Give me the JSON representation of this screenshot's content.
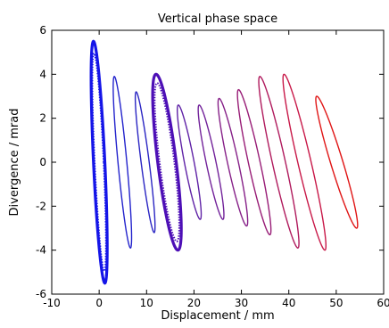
{
  "chart_data": {
    "type": "scatter",
    "title": "Vertical phase space",
    "xlabel": "Displacement / mm",
    "ylabel": "Divergence / mrad",
    "xlim": [
      -10,
      60
    ],
    "ylim": [
      -6,
      6
    ],
    "xticks": [
      -10,
      0,
      10,
      20,
      30,
      40,
      50,
      60
    ],
    "yticks": [
      -6,
      -4,
      -2,
      0,
      2,
      4,
      6
    ],
    "xtick_labels": [
      "-10",
      "0",
      "10",
      "20",
      "30",
      "40",
      "50",
      "60"
    ],
    "ytick_labels": [
      "-6",
      "-4",
      "-2",
      "0",
      "2",
      "4",
      "6"
    ],
    "grid": false,
    "legend": "none",
    "color_gradient": [
      "#1515ee",
      "#e01515"
    ],
    "series": [
      {
        "x_center": 0.0,
        "x_half_width": 1.2,
        "y_peak": 5.5,
        "y_trough": -5.5,
        "width_scale": 1.0,
        "color": "#1515e8",
        "style": "dense"
      },
      {
        "x_center": 4.9,
        "x_half_width": 1.7,
        "y_peak": 3.9,
        "y_trough": -3.9,
        "width_scale": 0.55,
        "color": "#2323cc",
        "style": "line"
      },
      {
        "x_center": 9.7,
        "x_half_width": 1.9,
        "y_peak": 3.2,
        "y_trough": -3.2,
        "width_scale": 0.45,
        "color": "#2a25c3",
        "style": "line"
      },
      {
        "x_center": 14.3,
        "x_half_width": 2.3,
        "y_peak": 4.0,
        "y_trough": -4.0,
        "width_scale": 0.85,
        "color": "#4d0fb6",
        "style": "dense"
      },
      {
        "x_center": 19.0,
        "x_half_width": 2.3,
        "y_peak": 2.6,
        "y_trough": -2.6,
        "width_scale": 0.45,
        "color": "#5f22a6",
        "style": "line"
      },
      {
        "x_center": 23.6,
        "x_half_width": 2.5,
        "y_peak": 2.6,
        "y_trough": -2.6,
        "width_scale": 0.42,
        "color": "#72229a",
        "style": "line"
      },
      {
        "x_center": 28.2,
        "x_half_width": 2.9,
        "y_peak": 2.9,
        "y_trough": -2.9,
        "width_scale": 0.4,
        "color": "#862088",
        "style": "line"
      },
      {
        "x_center": 32.7,
        "x_half_width": 3.3,
        "y_peak": 3.3,
        "y_trough": -3.3,
        "width_scale": 0.38,
        "color": "#981c76",
        "style": "line"
      },
      {
        "x_center": 37.9,
        "x_half_width": 4.0,
        "y_peak": 3.9,
        "y_trough": -3.9,
        "width_scale": 0.35,
        "color": "#b01a5d",
        "style": "line"
      },
      {
        "x_center": 43.3,
        "x_half_width": 4.3,
        "y_peak": 4.0,
        "y_trough": -4.0,
        "width_scale": 0.33,
        "color": "#c81848",
        "style": "line"
      },
      {
        "x_center": 50.1,
        "x_half_width": 4.2,
        "y_peak": 3.0,
        "y_trough": -3.0,
        "width_scale": 0.32,
        "color": "#e01515",
        "style": "line"
      }
    ]
  }
}
